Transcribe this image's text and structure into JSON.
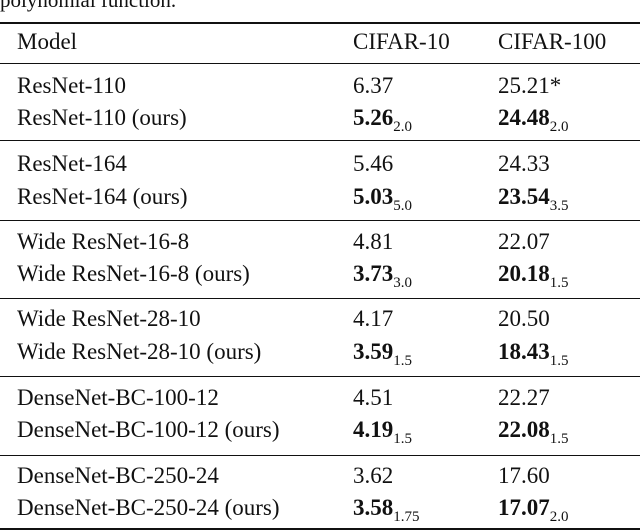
{
  "caption": "polynomial function.",
  "header": {
    "model": "Model",
    "cifar10": "CIFAR-10",
    "cifar100": "CIFAR-100"
  },
  "rows": [
    {
      "model": "ResNet-110",
      "c10": "6.37",
      "c10_sub": "",
      "c100": "25.21*",
      "c100_sub": "",
      "bold": false
    },
    {
      "model": "ResNet-110 (ours)",
      "c10": "5.26",
      "c10_sub": "2.0",
      "c100": "24.48",
      "c100_sub": "2.0",
      "bold": true
    },
    {
      "model": "ResNet-164",
      "c10": "5.46",
      "c10_sub": "",
      "c100": "24.33",
      "c100_sub": "",
      "bold": false
    },
    {
      "model": "ResNet-164 (ours)",
      "c10": "5.03",
      "c10_sub": "5.0",
      "c100": "23.54",
      "c100_sub": "3.5",
      "bold": true
    },
    {
      "model": "Wide ResNet-16-8",
      "c10": "4.81",
      "c10_sub": "",
      "c100": "22.07",
      "c100_sub": "",
      "bold": false
    },
    {
      "model": "Wide ResNet-16-8 (ours)",
      "c10": "3.73",
      "c10_sub": "3.0",
      "c100": "20.18",
      "c100_sub": "1.5",
      "bold": true
    },
    {
      "model": "Wide ResNet-28-10",
      "c10": "4.17",
      "c10_sub": "",
      "c100": "20.50",
      "c100_sub": "",
      "bold": false
    },
    {
      "model": "Wide ResNet-28-10 (ours)",
      "c10": "3.59",
      "c10_sub": "1.5",
      "c100": "18.43",
      "c100_sub": "1.5",
      "bold": true
    },
    {
      "model": "DenseNet-BC-100-12",
      "c10": "4.51",
      "c10_sub": "",
      "c100": "22.27",
      "c100_sub": "",
      "bold": false
    },
    {
      "model": "DenseNet-BC-100-12 (ours)",
      "c10": "4.19",
      "c10_sub": "1.5",
      "c100": "22.08",
      "c100_sub": "1.5",
      "bold": true
    },
    {
      "model": "DenseNet-BC-250-24",
      "c10": "3.62",
      "c10_sub": "",
      "c100": "17.60",
      "c100_sub": "",
      "bold": false
    },
    {
      "model": "DenseNet-BC-250-24 (ours)",
      "c10": "3.58",
      "c10_sub": "1.75",
      "c100": "17.07",
      "c100_sub": "2.0",
      "bold": true
    }
  ]
}
